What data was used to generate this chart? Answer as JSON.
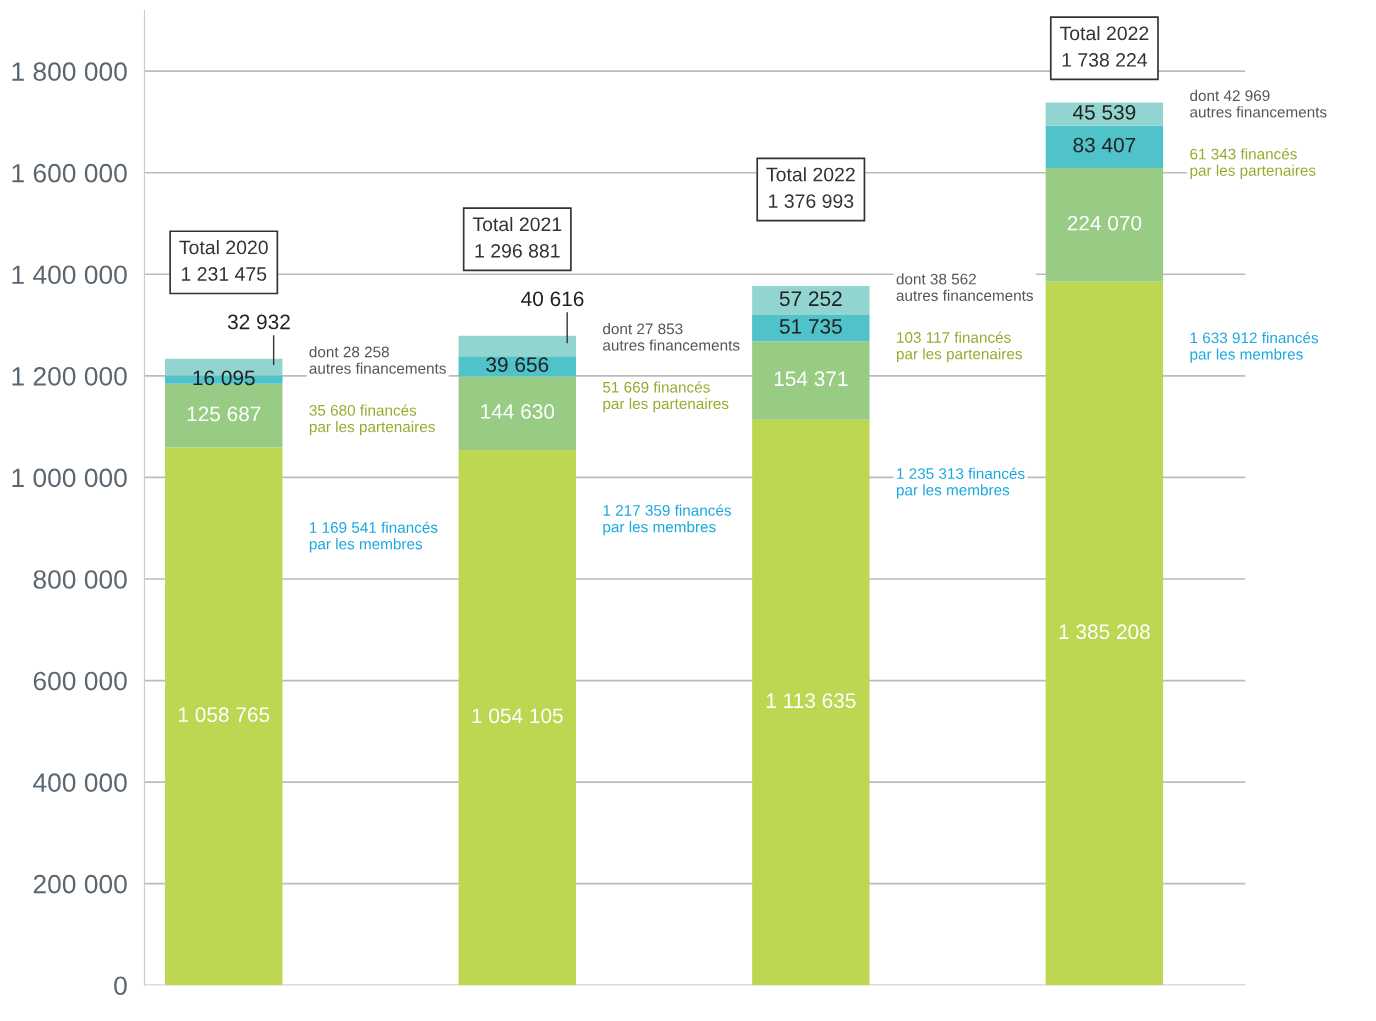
{
  "chart_data": {
    "type": "bar",
    "stacked": true,
    "categories": [
      null,
      null,
      null,
      null
    ],
    "series": [
      {
        "color": "#bdd753",
        "values": [
          1058765,
          1054105,
          1113635,
          1385208
        ],
        "value_labels": [
          "1 058 765",
          "1 054 105",
          "1 113 635",
          "1 385 208"
        ]
      },
      {
        "color": "#98cc85",
        "values": [
          125687,
          144630,
          154371,
          224070
        ],
        "value_labels": [
          "125 687",
          "144 630",
          "154 371",
          "224 070"
        ]
      },
      {
        "color": "#4fc3c9",
        "values": [
          16095,
          39656,
          51735,
          83407
        ],
        "value_labels": [
          "16 095",
          "39 656",
          "51 735",
          "83 407"
        ]
      },
      {
        "color": "#92d5d0",
        "values": [
          32932,
          40616,
          57252,
          45539
        ],
        "value_labels": [
          "32 932",
          "40 616",
          "57 252",
          "45 539"
        ]
      }
    ],
    "ylim": [
      0,
      1920000
    ],
    "yticks": [
      0,
      {
        "value": 200000,
        "label": "200 000"
      },
      {
        "value": 400000,
        "label": "400 000"
      },
      {
        "value": 600000,
        "label": "600 000"
      },
      {
        "value": 800000,
        "label": "800 000"
      },
      {
        "value": 1000000,
        "label": "1 000 000"
      },
      {
        "value": 1200000,
        "label": "1 200 000"
      },
      {
        "value": 1400000,
        "label": "1 400 000"
      },
      {
        "value": 1600000,
        "label": "1 600 000"
      },
      {
        "value": 1800000,
        "label": "1 800 000"
      }
    ],
    "grid": "y",
    "tick_labels": "y",
    "annotations": [
      "Total 2020\n1 231 475",
      "dont 28 258\nautres financements",
      "35 680 financés\npar les partenaires",
      "1 169 541 financés\npar les membres",
      "Total 2021\n1 296 881",
      "dont 27 853\nautres financements",
      "51 669 financés\npar les partenaires",
      "1 217 359 financés\npar les membres",
      "Total 2022\n1 376 993",
      "dont 38 562\nautres financements",
      "103 117 financés\npar les partenaires",
      "1 235 313 financés\npar les membres",
      "Total 2022\n1 738 224",
      "dont 42 969\nautres financements",
      "61 343 financés\npar les partenaires",
      "1 633 912 financés\npar les membres"
    ]
  }
}
